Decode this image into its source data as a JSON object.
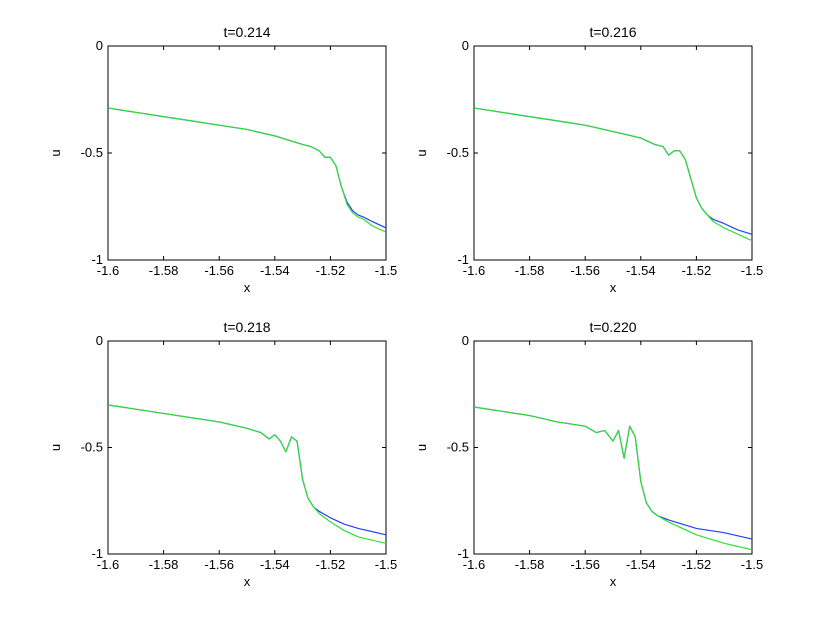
{
  "chart_data": [
    {
      "type": "line",
      "title": "t=0.214",
      "xlabel": "x",
      "ylabel": "u",
      "xlim": [
        -1.6,
        -1.5
      ],
      "ylim": [
        -1,
        0
      ],
      "xticks": [
        "-1.6",
        "-1.58",
        "-1.56",
        "-1.54",
        "-1.52",
        "-1.5"
      ],
      "yticks": [
        "-1",
        "-0.5",
        "0"
      ],
      "grid": false,
      "series": [
        {
          "color": "#2040ff",
          "x": [
            -1.6,
            -1.59,
            -1.58,
            -1.57,
            -1.56,
            -1.55,
            -1.54,
            -1.535,
            -1.53,
            -1.527,
            -1.524,
            -1.522,
            -1.52,
            -1.518,
            -1.516,
            -1.514,
            -1.512,
            -1.51,
            -1.508,
            -1.505,
            -1.5
          ],
          "y": [
            -0.29,
            -0.31,
            -0.33,
            -0.35,
            -0.37,
            -0.39,
            -0.42,
            -0.44,
            -0.46,
            -0.47,
            -0.49,
            -0.52,
            -0.52,
            -0.56,
            -0.66,
            -0.73,
            -0.77,
            -0.79,
            -0.8,
            -0.82,
            -0.85
          ]
        },
        {
          "color": "#33dd33",
          "x": [
            -1.6,
            -1.59,
            -1.58,
            -1.57,
            -1.56,
            -1.55,
            -1.54,
            -1.535,
            -1.53,
            -1.527,
            -1.524,
            -1.522,
            -1.52,
            -1.518,
            -1.516,
            -1.514,
            -1.512,
            -1.51,
            -1.508,
            -1.505,
            -1.5
          ],
          "y": [
            -0.29,
            -0.31,
            -0.33,
            -0.35,
            -0.37,
            -0.39,
            -0.42,
            -0.44,
            -0.46,
            -0.47,
            -0.49,
            -0.52,
            -0.52,
            -0.56,
            -0.66,
            -0.74,
            -0.78,
            -0.8,
            -0.81,
            -0.84,
            -0.87
          ]
        }
      ]
    },
    {
      "type": "line",
      "title": "t=0.216",
      "xlabel": "x",
      "ylabel": "u",
      "xlim": [
        -1.6,
        -1.5
      ],
      "ylim": [
        -1,
        0
      ],
      "xticks": [
        "-1.6",
        "-1.58",
        "-1.56",
        "-1.54",
        "-1.52",
        "-1.5"
      ],
      "yticks": [
        "-1",
        "-0.5",
        "0"
      ],
      "grid": false,
      "series": [
        {
          "color": "#2040ff",
          "x": [
            -1.6,
            -1.59,
            -1.58,
            -1.57,
            -1.56,
            -1.55,
            -1.54,
            -1.535,
            -1.532,
            -1.53,
            -1.528,
            -1.526,
            -1.524,
            -1.522,
            -1.52,
            -1.518,
            -1.516,
            -1.514,
            -1.51,
            -1.505,
            -1.5
          ],
          "y": [
            -0.29,
            -0.31,
            -0.33,
            -0.35,
            -0.37,
            -0.4,
            -0.43,
            -0.46,
            -0.47,
            -0.51,
            -0.49,
            -0.49,
            -0.53,
            -0.62,
            -0.71,
            -0.76,
            -0.79,
            -0.81,
            -0.83,
            -0.86,
            -0.88
          ]
        },
        {
          "color": "#33dd33",
          "x": [
            -1.6,
            -1.59,
            -1.58,
            -1.57,
            -1.56,
            -1.55,
            -1.54,
            -1.535,
            -1.532,
            -1.53,
            -1.528,
            -1.526,
            -1.524,
            -1.522,
            -1.52,
            -1.518,
            -1.516,
            -1.514,
            -1.51,
            -1.505,
            -1.5
          ],
          "y": [
            -0.29,
            -0.31,
            -0.33,
            -0.35,
            -0.37,
            -0.4,
            -0.43,
            -0.46,
            -0.47,
            -0.51,
            -0.49,
            -0.49,
            -0.53,
            -0.62,
            -0.71,
            -0.76,
            -0.79,
            -0.82,
            -0.85,
            -0.88,
            -0.91
          ]
        }
      ]
    },
    {
      "type": "line",
      "title": "t=0.218",
      "xlabel": "x",
      "ylabel": "u",
      "xlim": [
        -1.6,
        -1.5
      ],
      "ylim": [
        -1,
        0
      ],
      "xticks": [
        "-1.6",
        "-1.58",
        "-1.56",
        "-1.54",
        "-1.52",
        "-1.5"
      ],
      "yticks": [
        "-1",
        "-0.5",
        "0"
      ],
      "grid": false,
      "series": [
        {
          "color": "#2040ff",
          "x": [
            -1.6,
            -1.59,
            -1.58,
            -1.57,
            -1.56,
            -1.55,
            -1.545,
            -1.542,
            -1.54,
            -1.538,
            -1.536,
            -1.534,
            -1.532,
            -1.53,
            -1.528,
            -1.526,
            -1.524,
            -1.52,
            -1.515,
            -1.51,
            -1.5
          ],
          "y": [
            -0.3,
            -0.32,
            -0.34,
            -0.36,
            -0.38,
            -0.41,
            -0.43,
            -0.46,
            -0.44,
            -0.47,
            -0.52,
            -0.45,
            -0.47,
            -0.65,
            -0.74,
            -0.78,
            -0.8,
            -0.83,
            -0.86,
            -0.88,
            -0.91
          ]
        },
        {
          "color": "#33dd33",
          "x": [
            -1.6,
            -1.59,
            -1.58,
            -1.57,
            -1.56,
            -1.55,
            -1.545,
            -1.542,
            -1.54,
            -1.538,
            -1.536,
            -1.534,
            -1.532,
            -1.53,
            -1.528,
            -1.526,
            -1.524,
            -1.52,
            -1.515,
            -1.51,
            -1.5
          ],
          "y": [
            -0.3,
            -0.32,
            -0.34,
            -0.36,
            -0.38,
            -0.41,
            -0.43,
            -0.46,
            -0.44,
            -0.47,
            -0.52,
            -0.45,
            -0.47,
            -0.65,
            -0.74,
            -0.78,
            -0.81,
            -0.85,
            -0.89,
            -0.92,
            -0.95
          ]
        }
      ]
    },
    {
      "type": "line",
      "title": "t=0.220",
      "xlabel": "x",
      "ylabel": "u",
      "xlim": [
        -1.6,
        -1.5
      ],
      "ylim": [
        -1,
        0
      ],
      "xticks": [
        "-1.6",
        "-1.58",
        "-1.56",
        "-1.54",
        "-1.52",
        "-1.5"
      ],
      "yticks": [
        "-1",
        "-0.5",
        "0"
      ],
      "grid": false,
      "series": [
        {
          "color": "#2040ff",
          "x": [
            -1.6,
            -1.59,
            -1.58,
            -1.57,
            -1.56,
            -1.556,
            -1.553,
            -1.55,
            -1.548,
            -1.546,
            -1.544,
            -1.542,
            -1.54,
            -1.538,
            -1.536,
            -1.534,
            -1.53,
            -1.525,
            -1.52,
            -1.51,
            -1.5
          ],
          "y": [
            -0.31,
            -0.33,
            -0.35,
            -0.38,
            -0.4,
            -0.43,
            -0.42,
            -0.47,
            -0.42,
            -0.55,
            -0.4,
            -0.45,
            -0.66,
            -0.76,
            -0.8,
            -0.82,
            -0.84,
            -0.86,
            -0.88,
            -0.9,
            -0.93
          ]
        },
        {
          "color": "#33dd33",
          "x": [
            -1.6,
            -1.59,
            -1.58,
            -1.57,
            -1.56,
            -1.556,
            -1.553,
            -1.55,
            -1.548,
            -1.546,
            -1.544,
            -1.542,
            -1.54,
            -1.538,
            -1.536,
            -1.534,
            -1.53,
            -1.525,
            -1.52,
            -1.51,
            -1.5
          ],
          "y": [
            -0.31,
            -0.33,
            -0.35,
            -0.38,
            -0.4,
            -0.43,
            -0.42,
            -0.47,
            -0.42,
            -0.55,
            -0.4,
            -0.45,
            -0.66,
            -0.76,
            -0.8,
            -0.82,
            -0.85,
            -0.88,
            -0.91,
            -0.95,
            -0.98
          ]
        }
      ]
    }
  ]
}
